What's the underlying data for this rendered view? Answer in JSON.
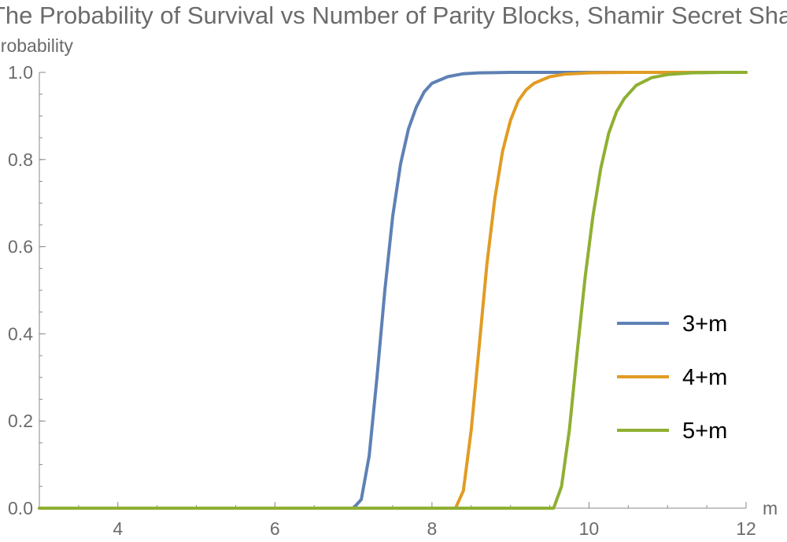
{
  "chart_data": {
    "type": "line",
    "title": "The Probability of Survival vs Number of Parity Blocks, Shamir Secret Sharing",
    "xlabel": "m",
    "ylabel": "probability",
    "xlim": [
      3,
      12
    ],
    "ylim": [
      0,
      1
    ],
    "x_ticks": [
      4,
      6,
      8,
      10,
      12
    ],
    "x_tick_labels": [
      "4",
      "6",
      "8",
      "10",
      "12"
    ],
    "y_ticks": [
      0,
      0.2,
      0.4,
      0.6,
      0.8,
      1.0
    ],
    "y_tick_labels": [
      "0.0",
      "0.2",
      "0.4",
      "0.6",
      "0.8",
      "1.0"
    ],
    "legend_position": "right",
    "series": [
      {
        "name": "3+m",
        "color": "#5e81b5",
        "x": [
          3,
          7.0,
          7.1,
          7.2,
          7.3,
          7.4,
          7.5,
          7.6,
          7.7,
          7.8,
          7.9,
          8.0,
          8.2,
          8.4,
          8.6,
          9.0,
          10.0,
          12.0
        ],
        "y": [
          0,
          0,
          0.02,
          0.12,
          0.3,
          0.5,
          0.67,
          0.79,
          0.87,
          0.92,
          0.955,
          0.975,
          0.99,
          0.997,
          0.999,
          1.0,
          1.0,
          1.0
        ]
      },
      {
        "name": "4+m",
        "color": "#e19c24",
        "x": [
          3,
          8.3,
          8.4,
          8.5,
          8.6,
          8.7,
          8.8,
          8.9,
          9.0,
          9.1,
          9.2,
          9.3,
          9.5,
          9.7,
          10.0,
          10.5,
          12.0
        ],
        "y": [
          0,
          0,
          0.04,
          0.18,
          0.37,
          0.56,
          0.71,
          0.82,
          0.89,
          0.935,
          0.96,
          0.975,
          0.99,
          0.996,
          0.999,
          1.0,
          1.0
        ]
      },
      {
        "name": "5+m",
        "color": "#8fb032",
        "x": [
          3,
          9.55,
          9.65,
          9.75,
          9.85,
          9.95,
          10.05,
          10.15,
          10.25,
          10.35,
          10.45,
          10.6,
          10.8,
          11.0,
          11.3,
          11.7,
          12.0
        ],
        "y": [
          0,
          0,
          0.05,
          0.18,
          0.36,
          0.53,
          0.67,
          0.78,
          0.86,
          0.91,
          0.94,
          0.97,
          0.988,
          0.995,
          0.999,
          1.0,
          1.0
        ]
      }
    ]
  }
}
